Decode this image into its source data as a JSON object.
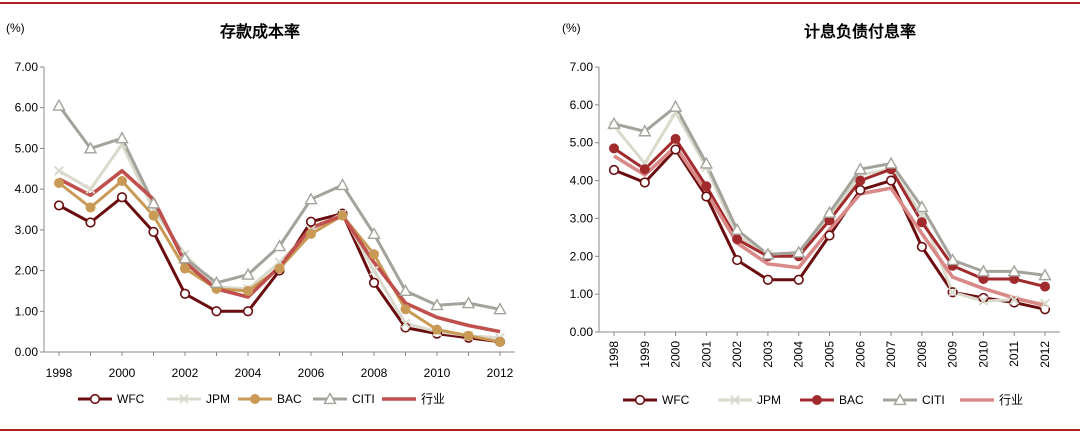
{
  "chart_data": [
    {
      "type": "line",
      "title": "存款成本率",
      "unit": "(%)",
      "x": [
        "1998",
        "1999",
        "2000",
        "2001",
        "2002",
        "2003",
        "2004",
        "2005",
        "2006",
        "2007",
        "2008",
        "2009",
        "2010",
        "2011",
        "2012"
      ],
      "x_tick_labels": [
        "1998",
        "",
        "2000",
        "",
        "2002",
        "",
        "2004",
        "",
        "2006",
        "",
        "2008",
        "",
        "2010",
        "",
        "2012"
      ],
      "x_label_rotation": "horizontal",
      "ylim": [
        0,
        7
      ],
      "y_ticks": [
        "0.00",
        "1.00",
        "2.00",
        "3.00",
        "4.00",
        "5.00",
        "6.00",
        "7.00"
      ],
      "grid": false,
      "legend_position": "bottom",
      "series": [
        {
          "name": "WFC",
          "color": "#6b0d0f",
          "marker": "circle-hollow",
          "values": [
            3.6,
            3.18,
            3.8,
            2.95,
            1.43,
            1.0,
            1.0,
            2.0,
            3.2,
            3.4,
            1.7,
            0.6,
            0.45,
            0.35,
            0.25
          ]
        },
        {
          "name": "JPM",
          "color": "#d9d9cc",
          "marker": "x",
          "values": [
            4.45,
            4.0,
            5.1,
            3.5,
            2.4,
            1.6,
            1.55,
            2.2,
            3.0,
            3.4,
            2.0,
            0.7,
            0.5,
            0.4,
            0.35
          ]
        },
        {
          "name": "BAC",
          "color": "#c89a55",
          "marker": "circle-filled",
          "values": [
            4.15,
            3.55,
            4.2,
            3.35,
            2.05,
            1.55,
            1.5,
            2.05,
            2.9,
            3.35,
            2.4,
            1.05,
            0.55,
            0.4,
            0.25
          ]
        },
        {
          "name": "CITI",
          "color": "#a3a39c",
          "marker": "triangle-hollow",
          "values": [
            6.05,
            5.0,
            5.25,
            3.65,
            2.3,
            1.7,
            1.9,
            2.6,
            3.75,
            4.1,
            2.9,
            1.5,
            1.15,
            1.2,
            1.05
          ]
        },
        {
          "name": "行业",
          "color": "#c0504d",
          "marker": "none",
          "values": [
            4.25,
            3.85,
            4.45,
            3.75,
            2.2,
            1.55,
            1.35,
            2.1,
            3.05,
            3.35,
            2.2,
            1.2,
            0.85,
            0.65,
            0.5
          ]
        }
      ]
    },
    {
      "type": "line",
      "title": "计息负债付息率",
      "unit": "(%)",
      "x": [
        "1998",
        "1999",
        "2000",
        "2001",
        "2002",
        "2003",
        "2004",
        "2005",
        "2006",
        "2007",
        "2008",
        "2009",
        "2010",
        "2011",
        "2012"
      ],
      "x_tick_labels": [
        "1998",
        "1999",
        "2000",
        "2001",
        "2002",
        "2003",
        "2004",
        "2005",
        "2006",
        "2007",
        "2008",
        "2009",
        "2010",
        "2011",
        "2012"
      ],
      "x_label_rotation": "vertical",
      "ylim": [
        0,
        7
      ],
      "y_ticks": [
        "0.00",
        "1.00",
        "2.00",
        "3.00",
        "4.00",
        "5.00",
        "6.00",
        "7.00"
      ],
      "grid": false,
      "legend_position": "bottom",
      "series": [
        {
          "name": "WFC",
          "color": "#6b0d0f",
          "marker": "circle-hollow",
          "values": [
            4.28,
            3.95,
            4.82,
            3.58,
            1.9,
            1.38,
            1.38,
            2.55,
            3.75,
            4.0,
            2.25,
            1.05,
            0.9,
            0.78,
            0.6
          ]
        },
        {
          "name": "JPM",
          "color": "#d9d9cc",
          "marker": "x",
          "values": [
            5.45,
            4.45,
            5.8,
            4.35,
            2.55,
            2.05,
            2.05,
            3.05,
            4.15,
            4.3,
            3.1,
            1.05,
            0.82,
            0.85,
            0.75
          ]
        },
        {
          "name": "BAC",
          "color": "#a12a2d",
          "marker": "circle-filled",
          "values": [
            4.85,
            4.3,
            5.1,
            3.85,
            2.45,
            2.0,
            2.0,
            2.95,
            4.0,
            4.3,
            2.9,
            1.75,
            1.4,
            1.4,
            1.2
          ]
        },
        {
          "name": "CITI",
          "color": "#a3a39c",
          "marker": "triangle-hollow",
          "values": [
            5.5,
            5.3,
            5.95,
            4.45,
            2.7,
            2.05,
            2.1,
            3.15,
            4.3,
            4.45,
            3.3,
            1.9,
            1.6,
            1.6,
            1.5
          ]
        },
        {
          "name": "行业",
          "color": "#d98a88",
          "marker": "none",
          "values": [
            4.65,
            4.15,
            4.9,
            3.7,
            2.35,
            1.8,
            1.7,
            2.7,
            3.65,
            3.8,
            2.6,
            1.45,
            1.15,
            0.9,
            0.7
          ]
        }
      ]
    }
  ]
}
